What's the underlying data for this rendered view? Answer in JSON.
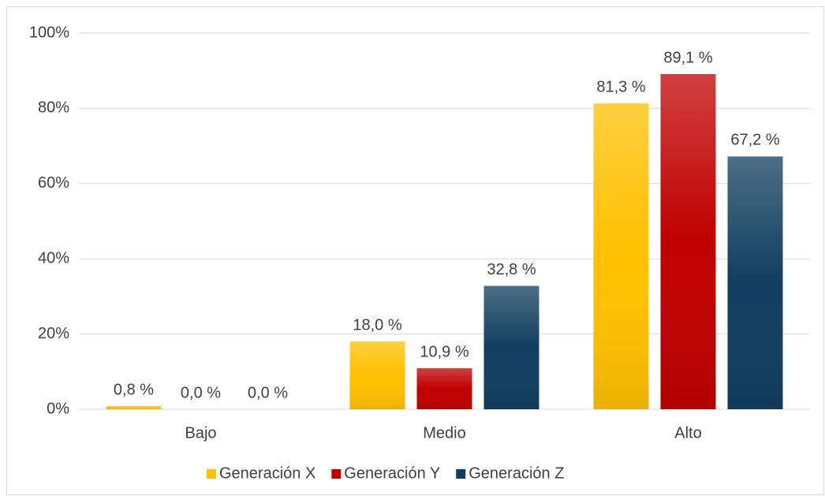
{
  "chart_data": {
    "type": "bar",
    "categories": [
      "Bajo",
      "Medio",
      "Alto"
    ],
    "series": [
      {
        "name": "Generación X",
        "color": "#ffc000",
        "values": [
          0.8,
          18.0,
          81.3
        ],
        "value_labels": [
          "0,8 %",
          "18,0 %",
          "81,3 %"
        ]
      },
      {
        "name": "Generación Y",
        "color": "#c00000",
        "values": [
          0.0,
          10.9,
          89.1
        ],
        "value_labels": [
          "0,0 %",
          "10,9 %",
          "89,1 %"
        ]
      },
      {
        "name": "Generación Z",
        "color": "#113e5f",
        "values": [
          0.0,
          32.8,
          67.2
        ],
        "value_labels": [
          "0,0 %",
          "32,8 %",
          "67,2 %"
        ]
      }
    ],
    "ylim": [
      0,
      100
    ],
    "yticks": [
      {
        "value": 0,
        "label": "0%"
      },
      {
        "value": 20,
        "label": "20%"
      },
      {
        "value": 40,
        "label": "40%"
      },
      {
        "value": 60,
        "label": "60%"
      },
      {
        "value": 80,
        "label": "80%"
      },
      {
        "value": 100,
        "label": "100%"
      }
    ],
    "grid": true,
    "legend": "bottom"
  }
}
